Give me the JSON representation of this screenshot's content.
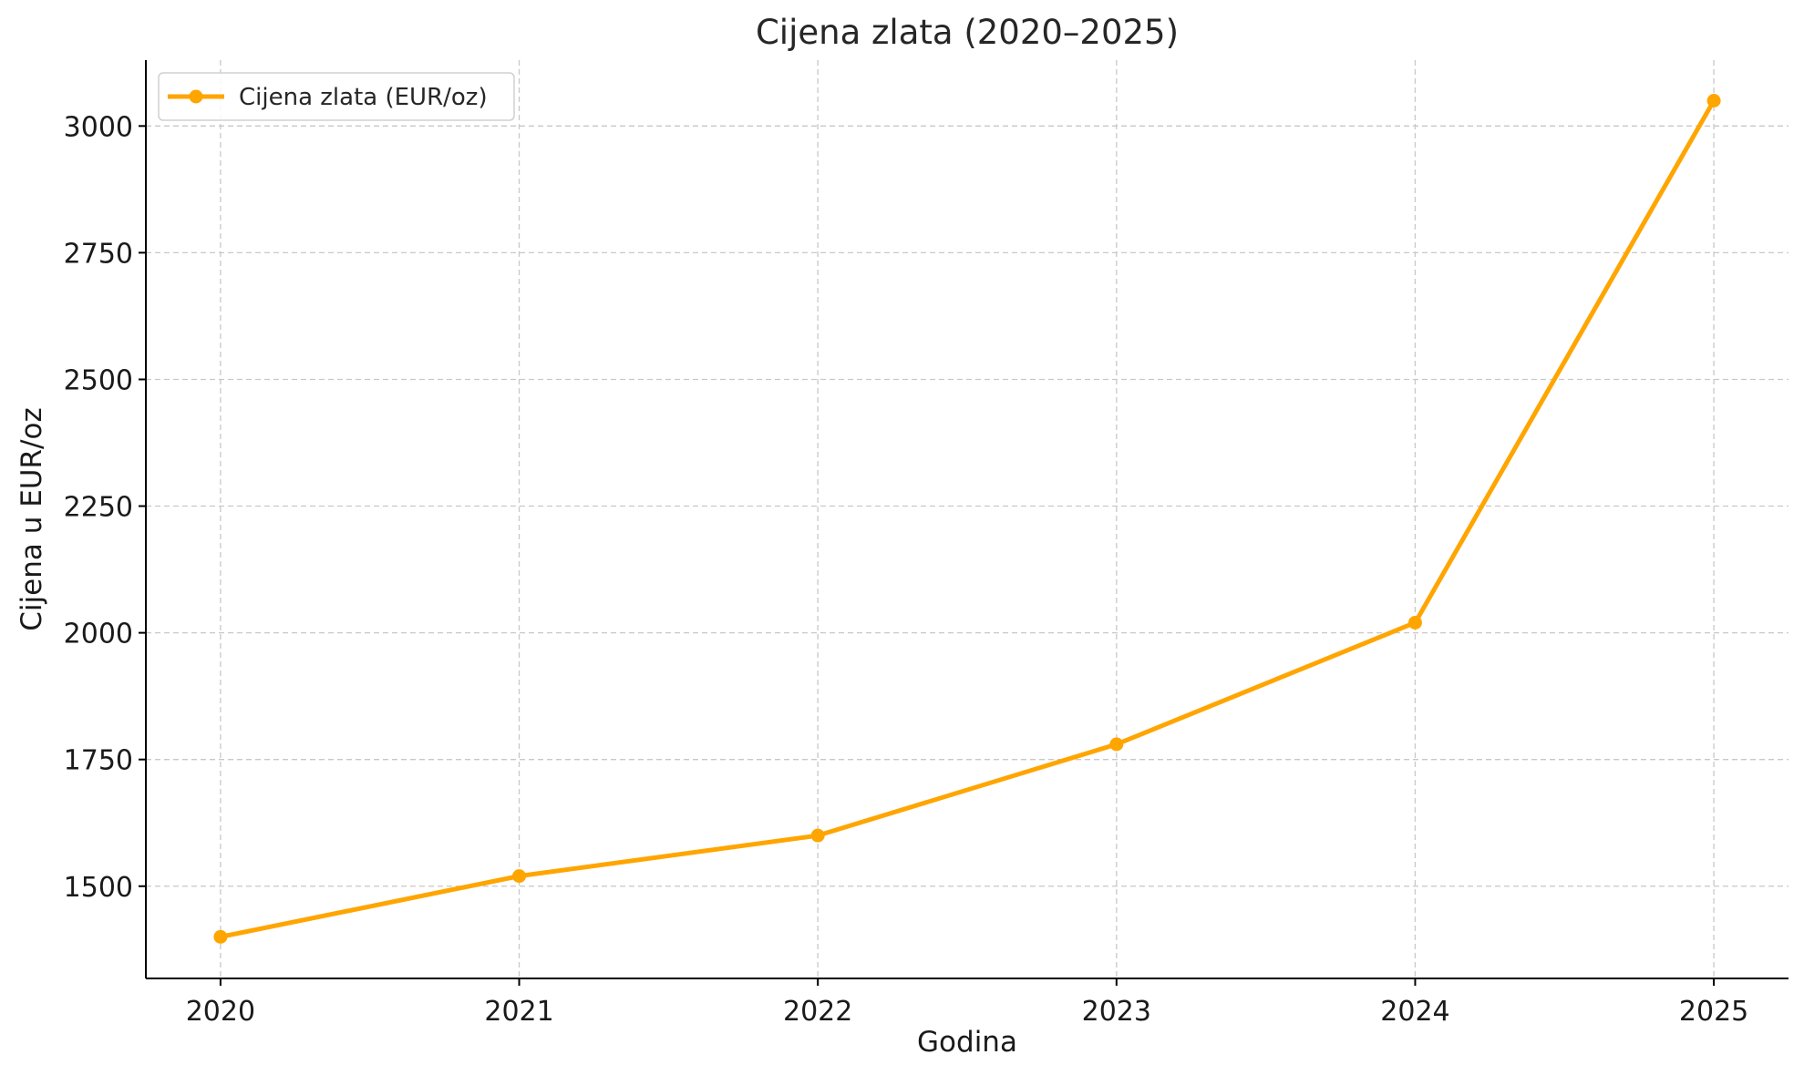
{
  "chart_data": {
    "type": "line",
    "title": "Cijena zlata (2020–2025)",
    "xlabel": "Godina",
    "ylabel": "Cijena u EUR/oz",
    "x": [
      2020,
      2021,
      2022,
      2023,
      2024,
      2025
    ],
    "x_tick_labels": [
      "2020",
      "2021",
      "2022",
      "2023",
      "2024",
      "2025"
    ],
    "y_ticks": [
      1500,
      1750,
      2000,
      2250,
      2500,
      2750,
      3000
    ],
    "y_tick_labels": [
      "1500",
      "1750",
      "2000",
      "2250",
      "2500",
      "2750",
      "3000"
    ],
    "xlim": [
      2019.75,
      2025.25
    ],
    "ylim": [
      1318,
      3130
    ],
    "grid": true,
    "legend_position": "top-left",
    "series": [
      {
        "name": "Cijena zlata (EUR/oz)",
        "color": "#FFA500",
        "marker": "circle",
        "values": [
          1400,
          1520,
          1600,
          1780,
          2020,
          3050
        ]
      }
    ]
  }
}
